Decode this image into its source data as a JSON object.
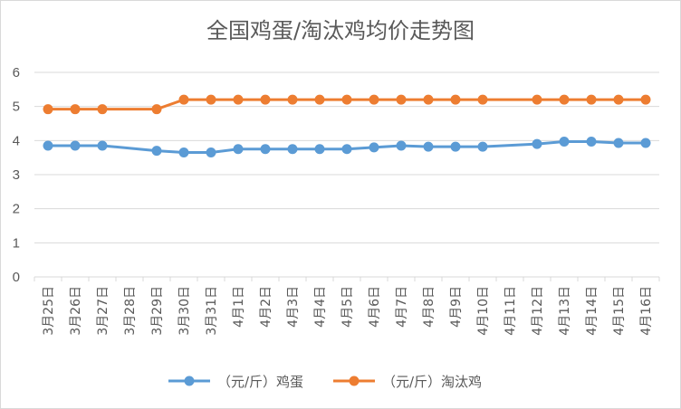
{
  "chart_data": {
    "type": "line",
    "title": "全国鸡蛋/淘汰鸡均价走势图",
    "categories": [
      "3月25日",
      "3月26日",
      "3月27日",
      "3月28日",
      "3月29日",
      "3月30日",
      "3月31日",
      "4月1日",
      "4月2日",
      "4月3日",
      "4月4日",
      "4月5日",
      "4月6日",
      "4月7日",
      "4月8日",
      "4月9日",
      "4月10日",
      "4月11日",
      "4月12日",
      "4月13日",
      "4月14日",
      "4月15日",
      "4月16日"
    ],
    "ylim": [
      0,
      6
    ],
    "yticks": [
      0,
      1,
      2,
      3,
      4,
      5,
      6
    ],
    "grid": true,
    "legend_position": "bottom",
    "series": [
      {
        "name": "（元/斤）鸡蛋",
        "color": "#5B9BD5",
        "values": [
          3.85,
          3.85,
          3.85,
          null,
          3.7,
          3.65,
          3.65,
          3.75,
          3.75,
          3.75,
          3.75,
          3.75,
          3.8,
          3.85,
          3.82,
          3.82,
          3.82,
          null,
          3.9,
          3.97,
          3.97,
          3.93,
          3.93
        ]
      },
      {
        "name": "（元/斤）淘汰鸡",
        "color": "#ED7D31",
        "values": [
          4.92,
          4.92,
          4.92,
          null,
          4.92,
          5.2,
          5.2,
          5.2,
          5.2,
          5.2,
          5.2,
          5.2,
          5.2,
          5.2,
          5.2,
          5.2,
          5.2,
          null,
          5.2,
          5.2,
          5.2,
          5.2,
          5.2
        ]
      }
    ]
  }
}
